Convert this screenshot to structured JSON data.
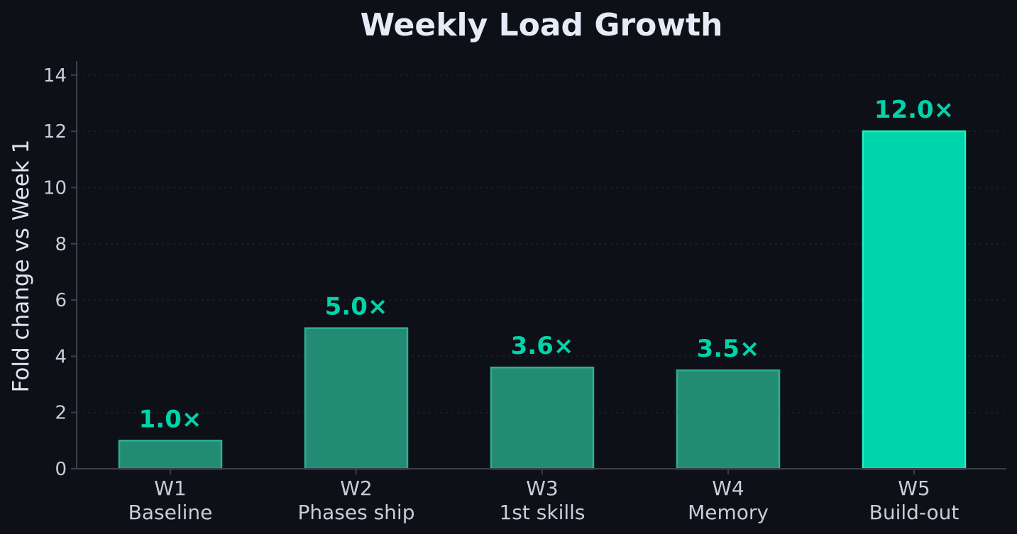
{
  "chart_data": {
    "type": "bar",
    "title": "Weekly Load Growth",
    "xlabel": "",
    "ylabel": "Fold change vs Week 1",
    "categories": [
      {
        "week": "W1",
        "phase": "Baseline"
      },
      {
        "week": "W2",
        "phase": "Phases ship"
      },
      {
        "week": "W3",
        "phase": "1st skills"
      },
      {
        "week": "W4",
        "phase": "Memory"
      },
      {
        "week": "W5",
        "phase": "Build-out"
      }
    ],
    "values": [
      1.0,
      5.0,
      3.6,
      3.5,
      12.0
    ],
    "data_labels": [
      "1.0×",
      "5.0×",
      "3.6×",
      "3.5×",
      "12.0×"
    ],
    "highlight_index": 4,
    "ylim": [
      0,
      14.5
    ],
    "yticks": [
      "0",
      "2",
      "4",
      "6",
      "8",
      "10",
      "12",
      "14"
    ],
    "grid": true,
    "colors": {
      "bar": "#238b74",
      "bar_edge": "#2fae91",
      "highlight": "#00d4aa",
      "highlight_edge": "#1ff0c4",
      "label": "#00d4aa"
    }
  }
}
